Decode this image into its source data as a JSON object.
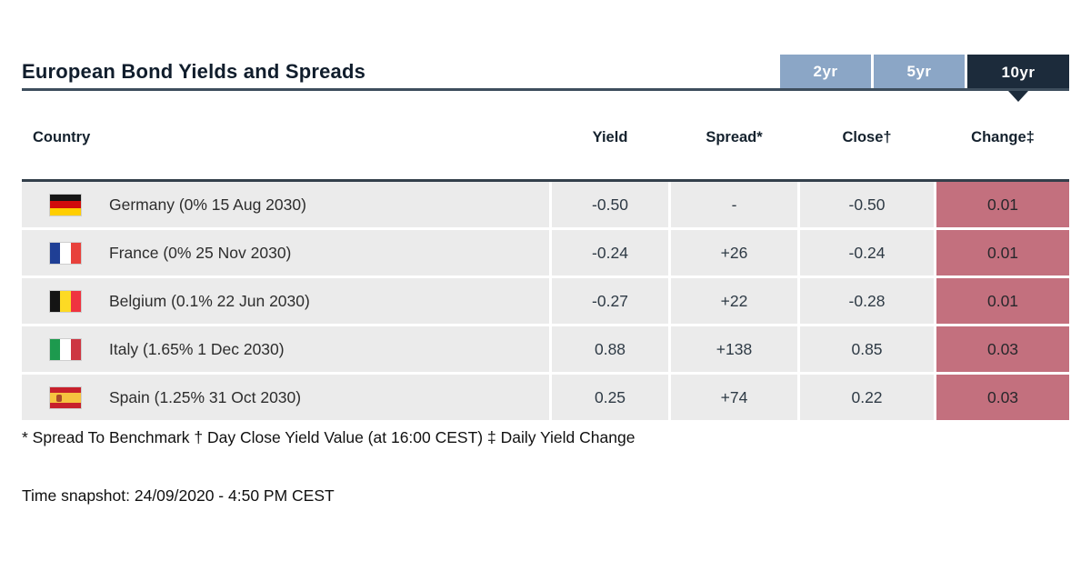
{
  "header": {
    "title": "European Bond Yields and Spreads",
    "tabs": [
      {
        "label": "2yr",
        "active": false
      },
      {
        "label": "5yr",
        "active": false
      },
      {
        "label": "10yr",
        "active": true
      }
    ]
  },
  "table": {
    "columns": [
      "Country",
      "Yield",
      "Spread*",
      "Close†",
      "Change‡"
    ],
    "rows": [
      {
        "flag": "germany-flag-icon",
        "country": "Germany (0% 15 Aug 2030)",
        "yield": "-0.50",
        "spread": "-",
        "close": "-0.50",
        "change": "0.01"
      },
      {
        "flag": "france-flag-icon",
        "country": "France (0% 25 Nov 2030)",
        "yield": "-0.24",
        "spread": "+26",
        "close": "-0.24",
        "change": "0.01"
      },
      {
        "flag": "belgium-flag-icon",
        "country": "Belgium (0.1% 22 Jun 2030)",
        "yield": "-0.27",
        "spread": "+22",
        "close": "-0.28",
        "change": "0.01"
      },
      {
        "flag": "italy-flag-icon",
        "country": "Italy (1.65% 1 Dec 2030)",
        "yield": "0.88",
        "spread": "+138",
        "close": "0.85",
        "change": "0.03"
      },
      {
        "flag": "spain-flag-icon",
        "country": "Spain (1.25% 31 Oct 2030)",
        "yield": "0.25",
        "spread": "+74",
        "close": "0.22",
        "change": "0.03"
      }
    ]
  },
  "footnote": "* Spread To Benchmark † Day Close Yield Value (at 16:00 CEST) ‡ Daily Yield Change",
  "time_snapshot": "Time snapshot: 24/09/2020 - 4:50 PM CEST",
  "colors": {
    "tab_active_bg": "#1c2b3b",
    "tab_inactive_bg": "#8ba6c6",
    "title_rule": "#3e4e5d",
    "row_bg": "#ebebeb",
    "change_cell_bg": "#c3707e"
  }
}
